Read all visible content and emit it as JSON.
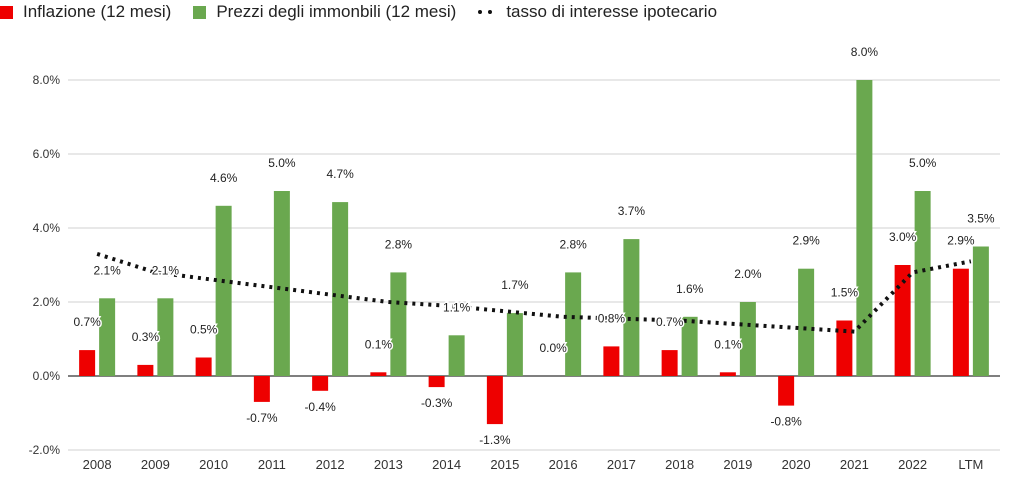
{
  "chart_data": {
    "type": "bar",
    "title": "",
    "xlabel": "",
    "ylabel": "",
    "ylim": [
      -2.0,
      8.0
    ],
    "yticks": [
      -2.0,
      0.0,
      2.0,
      4.0,
      6.0,
      8.0
    ],
    "ytick_labels": [
      "-2.0%",
      "0.0%",
      "2.0%",
      "4.0%",
      "6.0%",
      "8.0%"
    ],
    "categories": [
      "2008",
      "2009",
      "2010",
      "2011",
      "2012",
      "2013",
      "2014",
      "2015",
      "2016",
      "2017",
      "2018",
      "2019",
      "2020",
      "2021",
      "2022",
      "LTM"
    ],
    "series": [
      {
        "name": "Inflazione (12 mesi)",
        "kind": "bar",
        "color": "#ee0000",
        "values": [
          0.7,
          0.3,
          0.5,
          -0.7,
          -0.4,
          0.1,
          -0.3,
          -1.3,
          0.0,
          0.8,
          0.7,
          0.1,
          -0.8,
          1.5,
          3.0,
          2.9
        ],
        "labels": [
          "0.7%",
          "0.3%",
          "0.5%",
          "-0.7%",
          "-0.4%",
          "0.1%",
          "-0.3%",
          "-1.3%",
          "0.0%",
          "0.8%",
          "0.7%",
          "0.1%",
          "-0.8%",
          "1.5%",
          "3.0%",
          "2.9%"
        ]
      },
      {
        "name": "Prezzi degli immonbili (12 mesi)",
        "kind": "bar",
        "color": "#6aa84f",
        "values": [
          2.1,
          2.1,
          4.6,
          5.0,
          4.7,
          2.8,
          1.1,
          1.7,
          2.8,
          3.7,
          1.6,
          2.0,
          2.9,
          8.0,
          5.0,
          3.5
        ],
        "labels": [
          "2.1%",
          "2.1%",
          "4.6%",
          "5.0%",
          "4.7%",
          "2.8%",
          "1.1%",
          "1.7%",
          "2.8%",
          "3.7%",
          "1.6%",
          "2.0%",
          "2.9%",
          "8.0%",
          "5.0%",
          "3.5%"
        ]
      },
      {
        "name": "tasso di interesse ipotecario",
        "kind": "line",
        "style": "dotted",
        "color": "#111111",
        "values": [
          3.3,
          2.8,
          2.6,
          2.4,
          2.2,
          2.0,
          1.9,
          1.75,
          1.6,
          1.55,
          1.5,
          1.4,
          1.3,
          1.2,
          2.8,
          3.1
        ]
      }
    ],
    "legend": "top-left",
    "grid": true
  }
}
